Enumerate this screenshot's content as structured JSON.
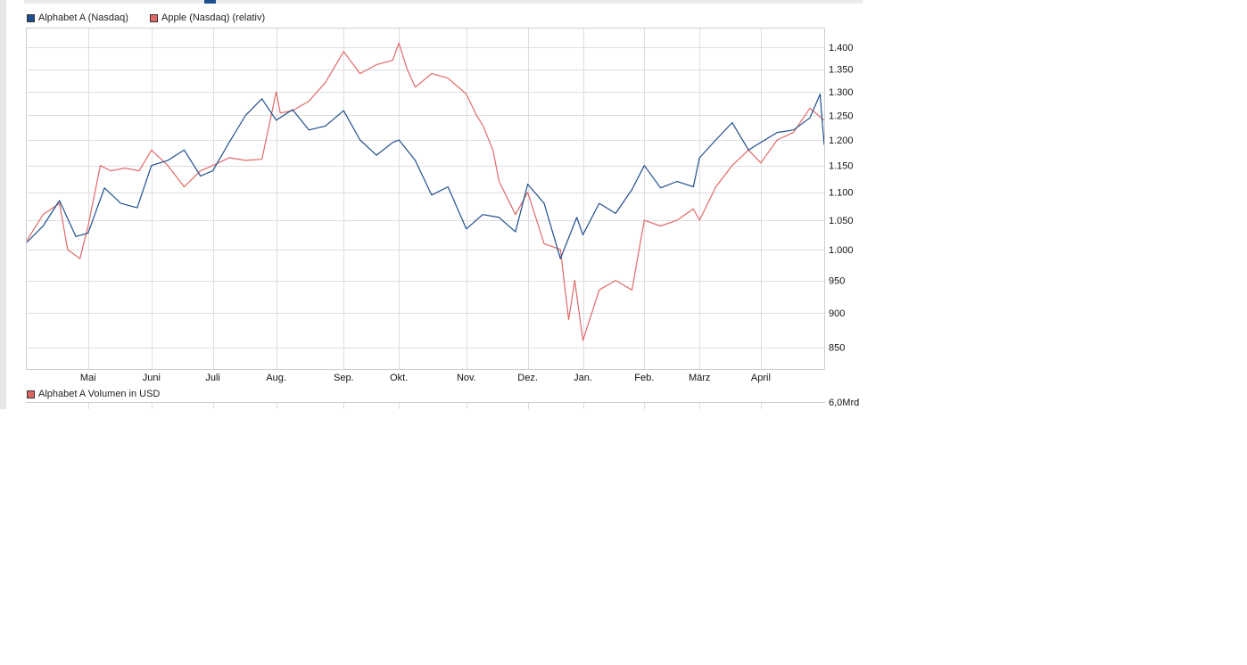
{
  "legend": {
    "series1_label": "Alphabet A (Nasdaq)",
    "series1_color": "#1f4e8c",
    "series2_label": "Apple (Nasdaq) (relativ)",
    "series2_color": "#e06a6a"
  },
  "volume_panel": {
    "label": "Alphabet A Volumen in USD",
    "swatch_color": "#d9665f",
    "axis_top_label": "6,0Mrd"
  },
  "chart_data": {
    "type": "line",
    "title": "",
    "xlabel": "",
    "ylabel": "",
    "y_ticks": [
      850,
      900,
      950,
      1000,
      1050,
      1100,
      1150,
      1200,
      1250,
      1300,
      1350,
      1400
    ],
    "y_tick_labels": [
      "850",
      "900",
      "950",
      "1.000",
      "1.050",
      "1.100",
      "1.150",
      "1.200",
      "1.250",
      "1.300",
      "1.350",
      "1.400"
    ],
    "x_range": [
      0,
      390
    ],
    "x_ticks": [
      30,
      61,
      91,
      122,
      155,
      182,
      215,
      245,
      272,
      302,
      329,
      359
    ],
    "x_tick_labels": [
      "Mai",
      "Juni",
      "Juli",
      "Aug.",
      "Sep.",
      "Okt.",
      "Nov.",
      "Dez.",
      "Jan.",
      "Feb.",
      "März",
      "April"
    ],
    "grid": true,
    "legend_placement": "top-left",
    "series": [
      {
        "name": "Alphabet A (Nasdaq)",
        "color": "#1f4e8c",
        "x": [
          0,
          8,
          16,
          24,
          30,
          38,
          46,
          54,
          61,
          69,
          77,
          85,
          91,
          99,
          107,
          115,
          122,
          130,
          138,
          146,
          155,
          163,
          171,
          179,
          182,
          190,
          198,
          206,
          215,
          223,
          231,
          239,
          245,
          253,
          261,
          269,
          272,
          280,
          288,
          296,
          302,
          310,
          318,
          326,
          329,
          337,
          345,
          353,
          359,
          367,
          375,
          383,
          388,
          390
        ],
        "values": [
          1012,
          1040,
          1085,
          1022,
          1028,
          1108,
          1080,
          1072,
          1150,
          1160,
          1180,
          1130,
          1140,
          1195,
          1250,
          1285,
          1240,
          1262,
          1220,
          1228,
          1260,
          1200,
          1170,
          1195,
          1200,
          1160,
          1095,
          1110,
          1035,
          1060,
          1055,
          1030,
          1115,
          1080,
          985,
          1055,
          1025,
          1080,
          1062,
          1105,
          1150,
          1108,
          1120,
          1110,
          1165,
          1200,
          1235,
          1180,
          1195,
          1215,
          1220,
          1245,
          1295,
          1190
        ]
      },
      {
        "name": "Apple (Nasdaq) (relativ)",
        "color": "#e06a6a",
        "x": [
          0,
          8,
          16,
          20,
          26,
          30,
          36,
          41,
          48,
          55,
          61,
          69,
          77,
          85,
          91,
          99,
          107,
          115,
          122,
          124,
          130,
          138,
          146,
          155,
          163,
          171,
          179,
          182,
          186,
          190,
          198,
          206,
          215,
          220,
          223,
          228,
          231,
          239,
          245,
          253,
          261,
          265,
          268,
          272,
          280,
          288,
          296,
          302,
          310,
          318,
          326,
          329,
          337,
          345,
          353,
          359,
          367,
          375,
          383,
          390
        ],
        "values": [
          1015,
          1060,
          1080,
          1000,
          985,
          1040,
          1150,
          1140,
          1145,
          1140,
          1180,
          1150,
          1110,
          1140,
          1150,
          1165,
          1160,
          1162,
          1300,
          1255,
          1260,
          1280,
          1320,
          1390,
          1340,
          1360,
          1370,
          1410,
          1350,
          1310,
          1340,
          1330,
          1295,
          1250,
          1230,
          1180,
          1120,
          1060,
          1100,
          1010,
          1000,
          890,
          950,
          860,
          935,
          950,
          935,
          1050,
          1040,
          1050,
          1070,
          1050,
          1110,
          1150,
          1180,
          1155,
          1200,
          1215,
          1265,
          1240
        ]
      }
    ]
  }
}
